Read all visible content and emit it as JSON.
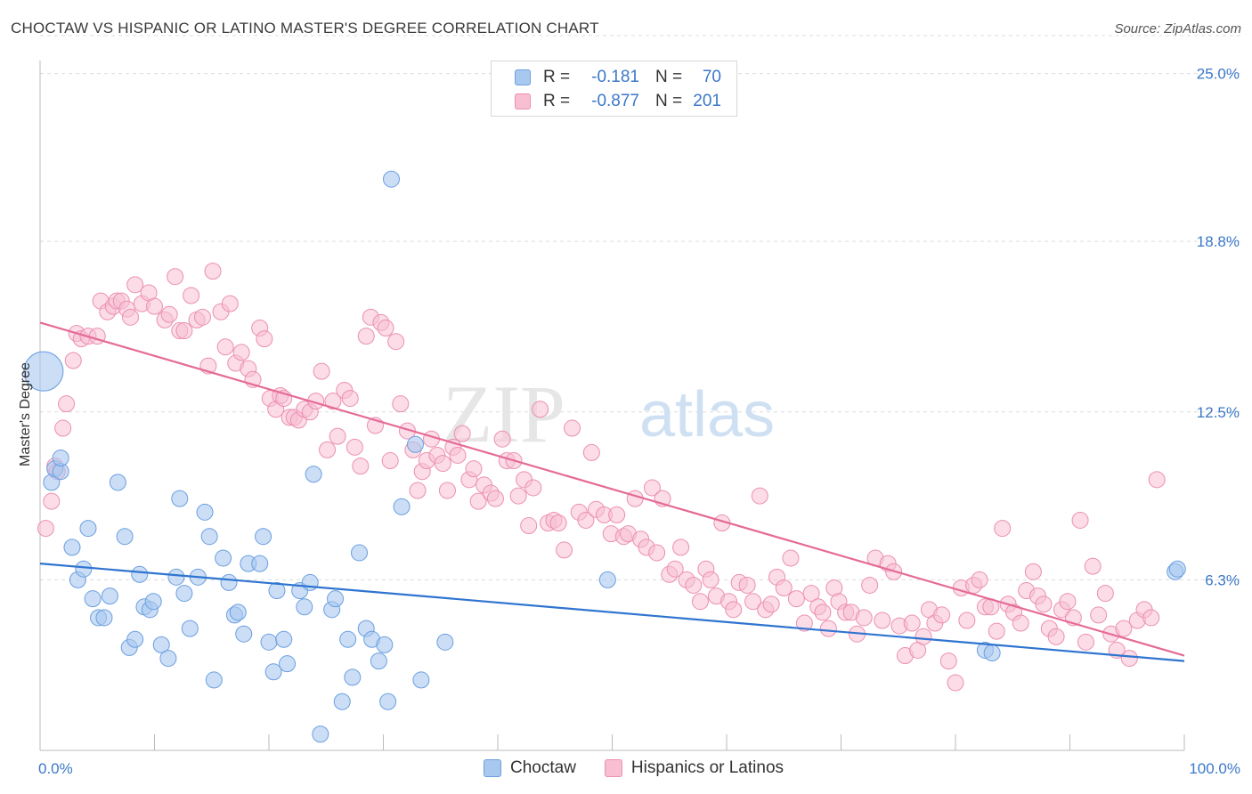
{
  "header": {
    "title": "CHOCTAW VS HISPANIC OR LATINO MASTER'S DEGREE CORRELATION CHART",
    "source": "Source: ZipAtlas.com"
  },
  "watermark": {
    "part1": "ZIP",
    "part2": "atlas"
  },
  "legend": {
    "rows": [
      {
        "r_label": "R =",
        "r_value": "-0.181",
        "n_label": "N =",
        "n_value": "70"
      },
      {
        "r_label": "R =",
        "r_value": "-0.877",
        "n_label": "N =",
        "n_value": "201"
      }
    ]
  },
  "bottom_legend": {
    "choctaw": "Choctaw",
    "hispanic": "Hispanics or Latinos"
  },
  "chart_data": {
    "type": "scatter",
    "title": "CHOCTAW VS HISPANIC OR LATINO MASTER'S DEGREE CORRELATION CHART",
    "xlabel": "",
    "ylabel": "Master's Degree",
    "xlim": [
      0,
      100
    ],
    "ylim": [
      0,
      26.4
    ],
    "x_tick_labels": [
      "0.0%",
      "100.0%"
    ],
    "y_ticks": [
      6.3,
      12.5,
      18.8,
      25.0
    ],
    "y_tick_labels": [
      "6.3%",
      "12.5%",
      "18.8%",
      "25.0%"
    ],
    "grid": true,
    "colors": {
      "choctaw_fill": "#a9c8f0",
      "choctaw_stroke": "#6a9fe0",
      "choctaw_line": "#2f74d0",
      "hispanic_fill": "#f8bfd3",
      "hispanic_stroke": "#ec8fb0",
      "hispanic_line": "#e56b97"
    },
    "series": [
      {
        "name": "Choctaw",
        "points": [
          [
            0.3,
            14.0
          ],
          [
            1.0,
            9.9
          ],
          [
            1.3,
            10.4
          ],
          [
            1.8,
            10.3
          ],
          [
            1.8,
            10.8
          ],
          [
            2.8,
            7.5
          ],
          [
            3.3,
            6.3
          ],
          [
            3.8,
            6.7
          ],
          [
            4.2,
            8.2
          ],
          [
            4.6,
            5.6
          ],
          [
            5.1,
            4.9
          ],
          [
            5.6,
            4.9
          ],
          [
            6.1,
            5.7
          ],
          [
            6.8,
            9.9
          ],
          [
            7.4,
            7.9
          ],
          [
            7.8,
            3.8
          ],
          [
            8.3,
            4.1
          ],
          [
            8.7,
            6.5
          ],
          [
            9.1,
            5.3
          ],
          [
            9.6,
            5.2
          ],
          [
            9.9,
            5.5
          ],
          [
            10.6,
            3.9
          ],
          [
            11.2,
            3.4
          ],
          [
            11.9,
            6.4
          ],
          [
            12.2,
            9.3
          ],
          [
            12.6,
            5.8
          ],
          [
            13.1,
            4.5
          ],
          [
            13.8,
            6.4
          ],
          [
            14.4,
            8.8
          ],
          [
            14.8,
            7.9
          ],
          [
            15.2,
            2.6
          ],
          [
            16.0,
            7.1
          ],
          [
            16.5,
            6.2
          ],
          [
            17.0,
            5.0
          ],
          [
            17.3,
            5.1
          ],
          [
            17.8,
            4.3
          ],
          [
            18.2,
            6.9
          ],
          [
            19.2,
            6.9
          ],
          [
            19.5,
            7.9
          ],
          [
            20.0,
            4.0
          ],
          [
            20.4,
            2.9
          ],
          [
            20.7,
            5.9
          ],
          [
            21.3,
            4.1
          ],
          [
            21.6,
            3.2
          ],
          [
            22.7,
            5.9
          ],
          [
            23.1,
            5.3
          ],
          [
            23.6,
            6.2
          ],
          [
            23.9,
            10.2
          ],
          [
            24.5,
            0.6
          ],
          [
            25.5,
            5.2
          ],
          [
            25.8,
            5.6
          ],
          [
            26.4,
            1.8
          ],
          [
            26.9,
            4.1
          ],
          [
            27.3,
            2.7
          ],
          [
            27.9,
            7.3
          ],
          [
            28.5,
            4.5
          ],
          [
            29.0,
            4.1
          ],
          [
            29.6,
            3.3
          ],
          [
            30.1,
            3.9
          ],
          [
            30.4,
            1.8
          ],
          [
            30.7,
            21.1
          ],
          [
            31.6,
            9.0
          ],
          [
            32.8,
            11.3
          ],
          [
            33.3,
            2.6
          ],
          [
            35.4,
            4.0
          ],
          [
            49.6,
            6.3
          ],
          [
            82.6,
            3.7
          ],
          [
            83.2,
            3.6
          ],
          [
            99.2,
            6.6
          ],
          [
            99.4,
            6.7
          ]
        ]
      },
      {
        "name": "Hispanics or Latinos",
        "points": [
          [
            0.5,
            8.2
          ],
          [
            1.0,
            9.2
          ],
          [
            1.3,
            10.5
          ],
          [
            1.5,
            10.3
          ],
          [
            2.0,
            11.9
          ],
          [
            2.3,
            12.8
          ],
          [
            2.9,
            14.4
          ],
          [
            3.2,
            15.4
          ],
          [
            3.6,
            15.2
          ],
          [
            4.2,
            15.3
          ],
          [
            5.0,
            15.3
          ],
          [
            5.3,
            16.6
          ],
          [
            5.9,
            16.2
          ],
          [
            6.4,
            16.4
          ],
          [
            6.7,
            16.6
          ],
          [
            7.1,
            16.6
          ],
          [
            7.6,
            16.3
          ],
          [
            7.9,
            16.0
          ],
          [
            8.3,
            17.2
          ],
          [
            8.9,
            16.5
          ],
          [
            9.5,
            16.9
          ],
          [
            10.0,
            16.4
          ],
          [
            10.9,
            15.9
          ],
          [
            11.3,
            16.1
          ],
          [
            11.8,
            17.5
          ],
          [
            12.2,
            15.5
          ],
          [
            12.6,
            15.5
          ],
          [
            13.2,
            16.8
          ],
          [
            13.7,
            15.9
          ],
          [
            14.2,
            16.0
          ],
          [
            14.7,
            14.2
          ],
          [
            15.1,
            17.7
          ],
          [
            15.8,
            16.2
          ],
          [
            16.2,
            14.9
          ],
          [
            16.6,
            16.5
          ],
          [
            17.1,
            14.3
          ],
          [
            17.6,
            14.7
          ],
          [
            18.2,
            14.1
          ],
          [
            18.6,
            13.7
          ],
          [
            19.2,
            15.6
          ],
          [
            19.6,
            15.2
          ],
          [
            20.1,
            13.0
          ],
          [
            20.6,
            12.6
          ],
          [
            21.0,
            13.1
          ],
          [
            21.3,
            13.0
          ],
          [
            21.8,
            12.3
          ],
          [
            22.2,
            12.3
          ],
          [
            22.6,
            12.2
          ],
          [
            23.1,
            12.6
          ],
          [
            23.6,
            12.5
          ],
          [
            24.1,
            12.9
          ],
          [
            24.6,
            14.0
          ],
          [
            25.1,
            11.1
          ],
          [
            25.6,
            12.9
          ],
          [
            26.0,
            11.6
          ],
          [
            26.6,
            13.3
          ],
          [
            27.1,
            13.0
          ],
          [
            27.5,
            11.2
          ],
          [
            28.0,
            10.5
          ],
          [
            28.5,
            15.3
          ],
          [
            28.9,
            16.0
          ],
          [
            29.3,
            12.0
          ],
          [
            29.8,
            15.8
          ],
          [
            30.2,
            15.6
          ],
          [
            30.6,
            10.7
          ],
          [
            31.1,
            15.1
          ],
          [
            31.5,
            12.8
          ],
          [
            32.1,
            11.8
          ],
          [
            32.6,
            11.1
          ],
          [
            33.0,
            9.6
          ],
          [
            33.4,
            10.3
          ],
          [
            33.8,
            10.7
          ],
          [
            34.2,
            11.5
          ],
          [
            34.7,
            10.9
          ],
          [
            35.2,
            10.6
          ],
          [
            35.6,
            9.6
          ],
          [
            36.1,
            11.2
          ],
          [
            36.5,
            10.9
          ],
          [
            36.9,
            11.7
          ],
          [
            37.5,
            10.0
          ],
          [
            37.9,
            10.4
          ],
          [
            38.3,
            9.2
          ],
          [
            38.8,
            9.8
          ],
          [
            39.4,
            9.5
          ],
          [
            39.8,
            9.3
          ],
          [
            40.4,
            11.5
          ],
          [
            40.8,
            10.7
          ],
          [
            41.4,
            10.7
          ],
          [
            41.8,
            9.4
          ],
          [
            42.3,
            10.0
          ],
          [
            42.7,
            8.3
          ],
          [
            43.1,
            9.7
          ],
          [
            43.7,
            12.6
          ],
          [
            44.4,
            8.4
          ],
          [
            44.9,
            8.5
          ],
          [
            45.3,
            8.4
          ],
          [
            45.8,
            7.4
          ],
          [
            46.5,
            11.9
          ],
          [
            47.1,
            8.8
          ],
          [
            47.7,
            8.5
          ],
          [
            48.2,
            11.0
          ],
          [
            48.6,
            8.9
          ],
          [
            49.3,
            8.7
          ],
          [
            49.9,
            8.0
          ],
          [
            50.4,
            8.7
          ],
          [
            51.0,
            7.9
          ],
          [
            51.4,
            8.0
          ],
          [
            52.0,
            9.3
          ],
          [
            52.5,
            7.8
          ],
          [
            53.0,
            7.5
          ],
          [
            53.5,
            9.7
          ],
          [
            53.9,
            7.3
          ],
          [
            54.4,
            9.3
          ],
          [
            55.0,
            6.5
          ],
          [
            55.5,
            6.7
          ],
          [
            56.0,
            7.5
          ],
          [
            56.5,
            6.3
          ],
          [
            57.1,
            6.1
          ],
          [
            57.7,
            5.5
          ],
          [
            58.2,
            6.7
          ],
          [
            58.6,
            6.3
          ],
          [
            59.1,
            5.7
          ],
          [
            59.6,
            8.4
          ],
          [
            60.2,
            5.5
          ],
          [
            60.6,
            5.2
          ],
          [
            61.1,
            6.2
          ],
          [
            61.8,
            6.1
          ],
          [
            62.3,
            5.5
          ],
          [
            62.9,
            9.4
          ],
          [
            63.4,
            5.2
          ],
          [
            63.9,
            5.4
          ],
          [
            64.4,
            6.4
          ],
          [
            65.0,
            6.0
          ],
          [
            65.6,
            7.1
          ],
          [
            66.1,
            5.6
          ],
          [
            66.8,
            4.7
          ],
          [
            67.4,
            5.8
          ],
          [
            68.0,
            5.3
          ],
          [
            68.4,
            5.1
          ],
          [
            68.9,
            4.5
          ],
          [
            69.4,
            6.0
          ],
          [
            69.8,
            5.5
          ],
          [
            70.4,
            5.1
          ],
          [
            70.9,
            5.1
          ],
          [
            71.4,
            4.3
          ],
          [
            72.0,
            4.9
          ],
          [
            72.5,
            6.1
          ],
          [
            73.0,
            7.1
          ],
          [
            73.6,
            4.8
          ],
          [
            74.1,
            6.9
          ],
          [
            74.6,
            6.6
          ],
          [
            75.1,
            4.6
          ],
          [
            75.6,
            3.5
          ],
          [
            76.2,
            4.7
          ],
          [
            76.7,
            3.7
          ],
          [
            77.2,
            4.2
          ],
          [
            77.7,
            5.2
          ],
          [
            78.2,
            4.7
          ],
          [
            78.8,
            5.0
          ],
          [
            79.4,
            3.3
          ],
          [
            80.0,
            2.5
          ],
          [
            80.5,
            6.0
          ],
          [
            81.0,
            4.8
          ],
          [
            81.6,
            6.1
          ],
          [
            82.1,
            6.3
          ],
          [
            82.6,
            5.3
          ],
          [
            83.1,
            5.3
          ],
          [
            83.6,
            4.4
          ],
          [
            84.1,
            8.2
          ],
          [
            84.6,
            5.4
          ],
          [
            85.1,
            5.1
          ],
          [
            85.7,
            4.7
          ],
          [
            86.2,
            5.9
          ],
          [
            86.8,
            6.6
          ],
          [
            87.2,
            5.7
          ],
          [
            87.7,
            5.4
          ],
          [
            88.2,
            4.5
          ],
          [
            88.8,
            4.2
          ],
          [
            89.3,
            5.2
          ],
          [
            89.8,
            5.5
          ],
          [
            90.3,
            4.9
          ],
          [
            90.9,
            8.5
          ],
          [
            91.4,
            4.0
          ],
          [
            92.0,
            6.8
          ],
          [
            92.5,
            5.0
          ],
          [
            93.1,
            5.8
          ],
          [
            93.6,
            4.3
          ],
          [
            94.1,
            3.7
          ],
          [
            94.7,
            4.5
          ],
          [
            95.2,
            3.4
          ],
          [
            95.9,
            4.8
          ],
          [
            96.5,
            5.2
          ],
          [
            97.1,
            4.9
          ],
          [
            97.6,
            10.0
          ]
        ]
      }
    ],
    "trend_lines": [
      {
        "name": "Choctaw",
        "x": [
          0,
          100
        ],
        "y": [
          6.9,
          3.3
        ]
      },
      {
        "name": "Hispanics or Latinos",
        "x": [
          0,
          100
        ],
        "y": [
          15.8,
          3.5
        ]
      }
    ]
  }
}
